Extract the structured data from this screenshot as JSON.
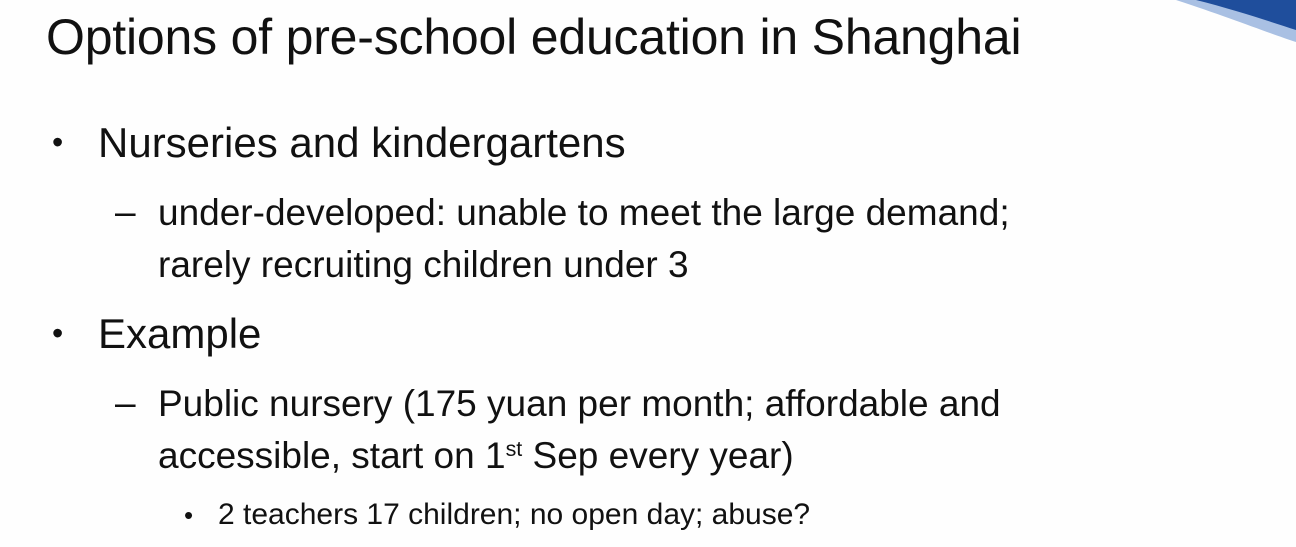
{
  "title": "Options of pre-school education in Shanghai",
  "colors": {
    "accent_blue": "#1f4e9c",
    "accent_light": "#a9c0e3",
    "text": "#111111"
  },
  "items": [
    {
      "text": "Nurseries and kindergartens",
      "sub": [
        {
          "line1": "under-developed: unable to meet the large demand;",
          "line2": "rarely recruiting children under 3"
        }
      ]
    },
    {
      "text": "Example",
      "sub": [
        {
          "line1": "Public nursery (175 yuan per month;  affordable and",
          "line2_before": "accessible, start on 1",
          "line2_sup": "st",
          "line2_after": " Sep every year)",
          "sub": [
            {
              "text": "2 teachers 17 children; no open day; abuse?"
            }
          ]
        }
      ]
    }
  ]
}
